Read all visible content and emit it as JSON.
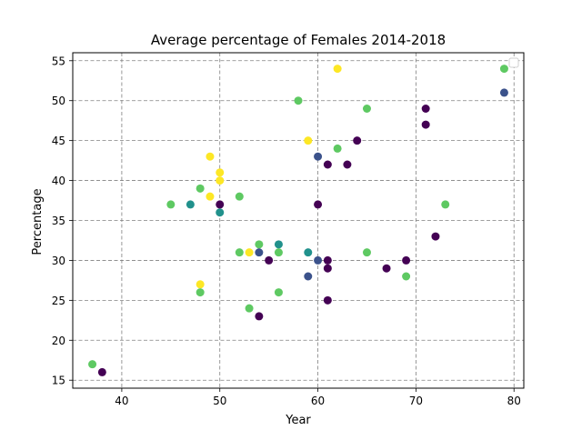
{
  "chart_data": {
    "type": "scatter",
    "title": "Average percentage of Females 2014-2018",
    "xlabel": "Year",
    "ylabel": "Percentage",
    "xlim": [
      35,
      81
    ],
    "ylim": [
      14,
      56
    ],
    "xticks": [
      40,
      50,
      60,
      70,
      80
    ],
    "yticks": [
      15,
      20,
      25,
      30,
      35,
      40,
      45,
      50,
      55
    ],
    "grid": true,
    "grid_style": "dashed",
    "legend": "top-right",
    "colors": {
      "purple": "#440154",
      "blue": "#3b528b",
      "teal": "#21918c",
      "green": "#5ec962",
      "yellow": "#fde725"
    },
    "points": [
      {
        "x": 37,
        "y": 17,
        "c": "green"
      },
      {
        "x": 38,
        "y": 16,
        "c": "purple"
      },
      {
        "x": 45,
        "y": 37,
        "c": "green"
      },
      {
        "x": 47,
        "y": 37,
        "c": "teal"
      },
      {
        "x": 48,
        "y": 39,
        "c": "green"
      },
      {
        "x": 48,
        "y": 27,
        "c": "yellow"
      },
      {
        "x": 48,
        "y": 26,
        "c": "green"
      },
      {
        "x": 49,
        "y": 43,
        "c": "yellow"
      },
      {
        "x": 49,
        "y": 38,
        "c": "yellow"
      },
      {
        "x": 50,
        "y": 41,
        "c": "yellow"
      },
      {
        "x": 50,
        "y": 40,
        "c": "yellow"
      },
      {
        "x": 50,
        "y": 37,
        "c": "purple"
      },
      {
        "x": 50,
        "y": 36,
        "c": "teal"
      },
      {
        "x": 52,
        "y": 38,
        "c": "green"
      },
      {
        "x": 52,
        "y": 31,
        "c": "green"
      },
      {
        "x": 53,
        "y": 31,
        "c": "yellow"
      },
      {
        "x": 53,
        "y": 24,
        "c": "green"
      },
      {
        "x": 54,
        "y": 32,
        "c": "green"
      },
      {
        "x": 54,
        "y": 31,
        "c": "blue"
      },
      {
        "x": 54,
        "y": 23,
        "c": "purple"
      },
      {
        "x": 55,
        "y": 30,
        "c": "purple"
      },
      {
        "x": 56,
        "y": 32,
        "c": "teal"
      },
      {
        "x": 56,
        "y": 31,
        "c": "green"
      },
      {
        "x": 56,
        "y": 26,
        "c": "green"
      },
      {
        "x": 58,
        "y": 50,
        "c": "green"
      },
      {
        "x": 59,
        "y": 45,
        "c": "yellow"
      },
      {
        "x": 59,
        "y": 31,
        "c": "teal"
      },
      {
        "x": 59,
        "y": 28,
        "c": "blue"
      },
      {
        "x": 60,
        "y": 43,
        "c": "blue"
      },
      {
        "x": 60,
        "y": 37,
        "c": "purple"
      },
      {
        "x": 60,
        "y": 30,
        "c": "blue"
      },
      {
        "x": 61,
        "y": 42,
        "c": "purple"
      },
      {
        "x": 61,
        "y": 30,
        "c": "purple"
      },
      {
        "x": 61,
        "y": 29,
        "c": "purple"
      },
      {
        "x": 61,
        "y": 25,
        "c": "purple"
      },
      {
        "x": 62,
        "y": 54,
        "c": "yellow"
      },
      {
        "x": 62,
        "y": 44,
        "c": "green"
      },
      {
        "x": 63,
        "y": 42,
        "c": "purple"
      },
      {
        "x": 64,
        "y": 45,
        "c": "purple"
      },
      {
        "x": 65,
        "y": 49,
        "c": "green"
      },
      {
        "x": 65,
        "y": 31,
        "c": "green"
      },
      {
        "x": 67,
        "y": 29,
        "c": "purple"
      },
      {
        "x": 69,
        "y": 30,
        "c": "purple"
      },
      {
        "x": 69,
        "y": 28,
        "c": "green"
      },
      {
        "x": 71,
        "y": 49,
        "c": "purple"
      },
      {
        "x": 71,
        "y": 47,
        "c": "purple"
      },
      {
        "x": 72,
        "y": 33,
        "c": "purple"
      },
      {
        "x": 73,
        "y": 37,
        "c": "green"
      },
      {
        "x": 79,
        "y": 54,
        "c": "green"
      },
      {
        "x": 79,
        "y": 51,
        "c": "blue"
      }
    ]
  }
}
